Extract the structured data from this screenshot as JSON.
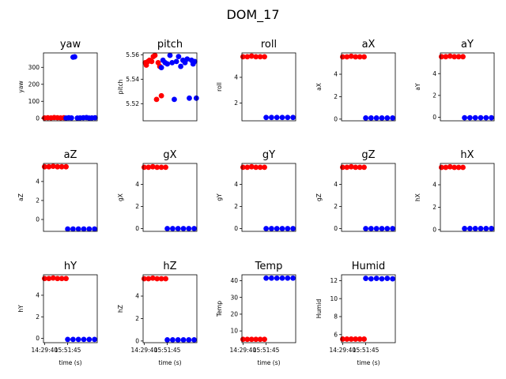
{
  "figure": {
    "suptitle": "DOM_17"
  },
  "colors": {
    "series_a": "#ff0000",
    "series_b": "#0000ff"
  },
  "chart_data": [
    {
      "type": "scatter",
      "title": "yaw",
      "ylabel": "yaw",
      "xlabel": "",
      "ylim": [
        -15,
        385
      ],
      "yticks": [
        "0",
        "100",
        "200",
        "300"
      ],
      "xticks": [],
      "series": [
        {
          "x": [
            0.02,
            0.08,
            0.14,
            0.2,
            0.26,
            0.32,
            0.38
          ],
          "y": [
            2,
            3,
            2,
            4,
            3,
            2,
            3
          ]
        },
        {
          "x": [
            0.42,
            0.47,
            0.52,
            0.55,
            0.58,
            0.63,
            0.68,
            0.74,
            0.8,
            0.85,
            0.9,
            0.96
          ],
          "y": [
            1,
            3,
            2,
            360,
            362,
            1,
            2,
            3,
            4,
            1,
            2,
            3
          ]
        }
      ]
    },
    {
      "type": "scatter",
      "title": "pitch",
      "ylabel": "pitch",
      "xlabel": "",
      "ylim": [
        5.506,
        5.5615
      ],
      "yticks": [
        "5.52",
        "5.54",
        "5.56"
      ],
      "xticks": [],
      "series": [
        {
          "x": [
            0.04,
            0.06,
            0.09,
            0.12,
            0.16,
            0.19,
            0.22,
            0.25,
            0.28,
            0.31,
            0.34
          ],
          "y": [
            5.5535,
            5.5515,
            5.5545,
            5.5555,
            5.5545,
            5.5585,
            5.5595,
            5.5235,
            5.5535,
            5.5505,
            5.5265
          ]
        },
        {
          "x": [
            0.34,
            0.37,
            0.41,
            0.45,
            0.5,
            0.54,
            0.58,
            0.62,
            0.66,
            0.7,
            0.74,
            0.78,
            0.82,
            0.86,
            0.9,
            0.93,
            0.96,
            0.99
          ],
          "y": [
            5.5495,
            5.5555,
            5.5535,
            5.5525,
            5.5595,
            5.5535,
            5.5235,
            5.5545,
            5.5585,
            5.5505,
            5.5555,
            5.5535,
            5.5565,
            5.5245,
            5.5555,
            5.5525,
            5.5545,
            5.5245
          ]
        }
      ]
    },
    {
      "type": "scatter",
      "title": "roll",
      "ylabel": "roll",
      "xlabel": "",
      "ylim": [
        0.62,
        5.9
      ],
      "yticks": [
        "2",
        "4"
      ],
      "xticks": [],
      "series": [
        {
          "x": [
            0.02,
            0.1,
            0.18,
            0.26,
            0.34,
            0.42
          ],
          "y": [
            5.6,
            5.6,
            5.65,
            5.6,
            5.6,
            5.6
          ]
        },
        {
          "x": [
            0.45,
            0.55,
            0.65,
            0.75,
            0.85,
            0.95
          ],
          "y": [
            0.88,
            0.88,
            0.88,
            0.88,
            0.88,
            0.88
          ]
        }
      ]
    },
    {
      "type": "scatter",
      "title": "aX",
      "ylabel": "aX",
      "xlabel": "",
      "ylim": [
        -0.15,
        5.9
      ],
      "yticks": [
        "0",
        "2",
        "4"
      ],
      "xticks": [],
      "series": [
        {
          "x": [
            0.02,
            0.1,
            0.18,
            0.26,
            0.34,
            0.42
          ],
          "y": [
            5.55,
            5.55,
            5.6,
            5.55,
            5.55,
            5.55
          ]
        },
        {
          "x": [
            0.45,
            0.55,
            0.65,
            0.75,
            0.85,
            0.95
          ],
          "y": [
            0.1,
            0.1,
            0.1,
            0.1,
            0.1,
            0.1
          ]
        }
      ]
    },
    {
      "type": "scatter",
      "title": "aY",
      "ylabel": "aY",
      "xlabel": "",
      "ylim": [
        -0.33,
        5.9
      ],
      "yticks": [
        "0",
        "2",
        "4"
      ],
      "xticks": [],
      "series": [
        {
          "x": [
            0.02,
            0.1,
            0.18,
            0.26,
            0.34,
            0.42
          ],
          "y": [
            5.55,
            5.55,
            5.6,
            5.55,
            5.55,
            5.55
          ]
        },
        {
          "x": [
            0.45,
            0.55,
            0.65,
            0.75,
            0.85,
            0.95
          ],
          "y": [
            -0.05,
            -0.05,
            -0.05,
            -0.05,
            -0.05,
            -0.05
          ]
        }
      ]
    },
    {
      "type": "scatter",
      "title": "aZ",
      "ylabel": "aZ",
      "xlabel": "",
      "ylim": [
        -1.25,
        5.9
      ],
      "yticks": [
        "0",
        "2",
        "4"
      ],
      "xticks": [],
      "series": [
        {
          "x": [
            0.02,
            0.1,
            0.18,
            0.26,
            0.34,
            0.42
          ],
          "y": [
            5.55,
            5.55,
            5.6,
            5.55,
            5.55,
            5.55
          ]
        },
        {
          "x": [
            0.45,
            0.55,
            0.65,
            0.75,
            0.85,
            0.95
          ],
          "y": [
            -1,
            -1,
            -1,
            -1,
            -1,
            -1
          ]
        }
      ]
    },
    {
      "type": "scatter",
      "title": "gX",
      "ylabel": "gX",
      "xlabel": "",
      "ylim": [
        -0.25,
        5.9
      ],
      "yticks": [
        "0",
        "2",
        "4"
      ],
      "xticks": [],
      "series": [
        {
          "x": [
            0.02,
            0.1,
            0.18,
            0.26,
            0.34,
            0.42
          ],
          "y": [
            5.55,
            5.55,
            5.6,
            5.55,
            5.55,
            5.55
          ]
        },
        {
          "x": [
            0.45,
            0.55,
            0.65,
            0.75,
            0.85,
            0.95
          ],
          "y": [
            0,
            0,
            0,
            0,
            0,
            0
          ]
        }
      ]
    },
    {
      "type": "scatter",
      "title": "gY",
      "ylabel": "gY",
      "xlabel": "",
      "ylim": [
        -0.25,
        5.9
      ],
      "yticks": [
        "0",
        "2",
        "4"
      ],
      "xticks": [],
      "series": [
        {
          "x": [
            0.02,
            0.1,
            0.18,
            0.26,
            0.34,
            0.42
          ],
          "y": [
            5.55,
            5.55,
            5.6,
            5.55,
            5.55,
            5.55
          ]
        },
        {
          "x": [
            0.45,
            0.55,
            0.65,
            0.75,
            0.85,
            0.95
          ],
          "y": [
            0,
            0,
            0,
            0,
            0,
            0
          ]
        }
      ]
    },
    {
      "type": "scatter",
      "title": "gZ",
      "ylabel": "gZ",
      "xlabel": "",
      "ylim": [
        -0.25,
        5.9
      ],
      "yticks": [
        "0",
        "2",
        "4"
      ],
      "xticks": [],
      "series": [
        {
          "x": [
            0.02,
            0.1,
            0.18,
            0.26,
            0.34,
            0.42
          ],
          "y": [
            5.55,
            5.55,
            5.6,
            5.55,
            5.55,
            5.55
          ]
        },
        {
          "x": [
            0.45,
            0.55,
            0.65,
            0.75,
            0.85,
            0.95
          ],
          "y": [
            0,
            0,
            0,
            0,
            0,
            0
          ]
        }
      ]
    },
    {
      "type": "scatter",
      "title": "hX",
      "ylabel": "hX",
      "xlabel": "",
      "ylim": [
        -0.15,
        5.9
      ],
      "yticks": [
        "0",
        "2",
        "4"
      ],
      "xticks": [],
      "series": [
        {
          "x": [
            0.02,
            0.1,
            0.18,
            0.26,
            0.34,
            0.42
          ],
          "y": [
            5.55,
            5.55,
            5.6,
            5.55,
            5.55,
            5.55
          ]
        },
        {
          "x": [
            0.45,
            0.55,
            0.65,
            0.75,
            0.85,
            0.95
          ],
          "y": [
            0.1,
            0.1,
            0.1,
            0.1,
            0.1,
            0.1
          ]
        }
      ]
    },
    {
      "type": "scatter",
      "title": "hY",
      "ylabel": "hY",
      "xlabel": "time (s)",
      "ylim": [
        -0.4,
        5.9
      ],
      "yticks": [
        "0",
        "2",
        "4"
      ],
      "xticks": [
        "14:29:40",
        "15:51:45"
      ],
      "series": [
        {
          "x": [
            0.02,
            0.1,
            0.18,
            0.26,
            0.34,
            0.42
          ],
          "y": [
            5.55,
            5.55,
            5.6,
            5.55,
            5.55,
            5.55
          ]
        },
        {
          "x": [
            0.45,
            0.55,
            0.65,
            0.75,
            0.85,
            0.95
          ],
          "y": [
            -0.1,
            -0.1,
            -0.1,
            -0.1,
            -0.1,
            -0.1
          ]
        }
      ]
    },
    {
      "type": "scatter",
      "title": "hZ",
      "ylabel": "hZ",
      "xlabel": "time (s)",
      "ylim": [
        -0.15,
        5.9
      ],
      "yticks": [
        "0",
        "2",
        "4"
      ],
      "xticks": [
        "14:29:40",
        "15:51:45"
      ],
      "series": [
        {
          "x": [
            0.02,
            0.1,
            0.18,
            0.26,
            0.34,
            0.42
          ],
          "y": [
            5.55,
            5.55,
            5.6,
            5.55,
            5.55,
            5.55
          ]
        },
        {
          "x": [
            0.45,
            0.55,
            0.65,
            0.75,
            0.85,
            0.95
          ],
          "y": [
            0.1,
            0.1,
            0.1,
            0.1,
            0.1,
            0.1
          ]
        }
      ]
    },
    {
      "type": "scatter",
      "title": "Temp",
      "ylabel": "Temp",
      "xlabel": "time (s)",
      "ylim": [
        3,
        43.5
      ],
      "yticks": [
        "10",
        "20",
        "30",
        "40"
      ],
      "xticks": [
        "14:29:40",
        "15:51:45"
      ],
      "series": [
        {
          "x": [
            0.02,
            0.1,
            0.18,
            0.26,
            0.34,
            0.42
          ],
          "y": [
            5,
            5,
            5,
            5,
            5,
            5
          ]
        },
        {
          "x": [
            0.45,
            0.55,
            0.65,
            0.75,
            0.85,
            0.95
          ],
          "y": [
            41.5,
            41.5,
            41.5,
            41.5,
            41.5,
            41.5
          ]
        }
      ]
    },
    {
      "type": "scatter",
      "title": "Humid",
      "ylabel": "Humid",
      "xlabel": "time (s)",
      "ylim": [
        5.1,
        12.65
      ],
      "yticks": [
        "6",
        "8",
        "10",
        "12"
      ],
      "xticks": [
        "14:29:40",
        "15:51:45"
      ],
      "series": [
        {
          "x": [
            0.02,
            0.1,
            0.18,
            0.26,
            0.34,
            0.42
          ],
          "y": [
            5.5,
            5.5,
            5.5,
            5.5,
            5.5,
            5.5
          ]
        },
        {
          "x": [
            0.45,
            0.55,
            0.65,
            0.75,
            0.85,
            0.95
          ],
          "y": [
            12.25,
            12.2,
            12.25,
            12.2,
            12.25,
            12.2
          ]
        }
      ]
    }
  ]
}
